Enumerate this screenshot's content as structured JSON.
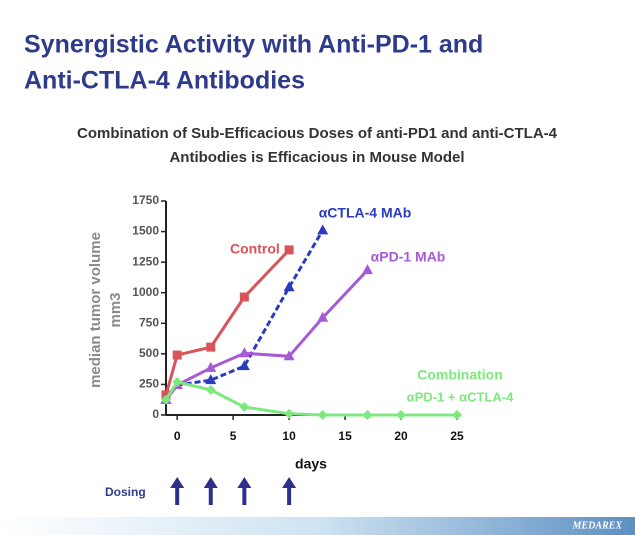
{
  "chart_data": {
    "type": "line",
    "title": [
      "Synergistic Activity with Anti-PD-1 and",
      "Anti-CTLA-4 Antibodies"
    ],
    "subtitle": [
      "Combination of Sub-Efficacious Doses of anti-PD1 and anti-CTLA-4",
      "Antibodies is Efficacious in Mouse Model"
    ],
    "y_label": [
      "median tumor volume",
      "mm3"
    ],
    "x_label": "days",
    "xlim": [
      -1,
      25
    ],
    "xticks": [
      0,
      5,
      10,
      15,
      20,
      25
    ],
    "ylim": [
      0,
      1750
    ],
    "yticks": [
      0,
      250,
      500,
      750,
      1000,
      1250,
      1500,
      1750
    ],
    "series": [
      {
        "name": "Control",
        "color": "#d9535a",
        "x": [
          -1,
          0,
          3,
          6,
          10
        ],
        "values": [
          165,
          490,
          555,
          965,
          1350
        ]
      },
      {
        "name": "αCTLA-4 MAb",
        "color": "#2b3bbf",
        "x": [
          -1,
          0,
          3,
          6,
          10,
          13
        ],
        "values": [
          125,
          245,
          285,
          400,
          1045,
          1510
        ]
      },
      {
        "name": "αPD-1 MAb",
        "color": "#a65ad6",
        "x": [
          -1,
          0,
          3,
          6,
          10,
          13,
          17
        ],
        "values": [
          125,
          245,
          385,
          505,
          480,
          795,
          1185
        ]
      },
      {
        "name": "Combination",
        "color": "#7ee87e",
        "x": [
          -1,
          0,
          3,
          6,
          10,
          13,
          17,
          20,
          25
        ],
        "values": [
          125,
          270,
          205,
          65,
          10,
          0,
          0,
          0,
          0
        ]
      }
    ],
    "annotation": "αPD-1 + αCTLA-4",
    "dosing_label": "Dosing",
    "dosing_days": [
      0,
      3,
      6,
      10
    ],
    "logo": "MEDAREX"
  }
}
